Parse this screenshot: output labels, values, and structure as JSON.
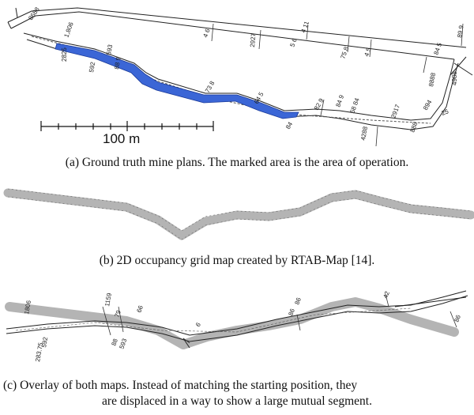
{
  "figure": {
    "panel_a": {
      "caption": "(a) Ground truth mine plans. The marked area is the area of operation.",
      "scale_label": "100 m",
      "highlight_color": "#3b66d6",
      "labels": [
        "8688",
        "1,806",
        "2825",
        "592",
        "593",
        "88 9",
        "593",
        "4 6",
        "5 6",
        "2927",
        "4 11",
        "75 8",
        "4 5",
        "2927",
        "73 8",
        "64 5",
        "82 9",
        "84 9",
        "58 84",
        "4288",
        "25",
        "84",
        "2917",
        "888",
        "8888",
        "8888",
        "894",
        "4988",
        "89 9",
        "84 5"
      ]
    },
    "panel_b": {
      "caption": "(b) 2D occupancy grid map created by RTAB-Map [14].",
      "map_color": "#b4b4b4"
    },
    "panel_c": {
      "caption_line1": "(c) Overlay of both maps. Instead of matching the starting position, they",
      "caption_line2": "are displaced in a way to show a large mutual segment.",
      "labels": [
        "1806",
        "592",
        "283.75",
        "1159",
        "79",
        "66",
        "88",
        "593",
        "6",
        "86",
        "86",
        "42",
        "86"
      ]
    }
  }
}
